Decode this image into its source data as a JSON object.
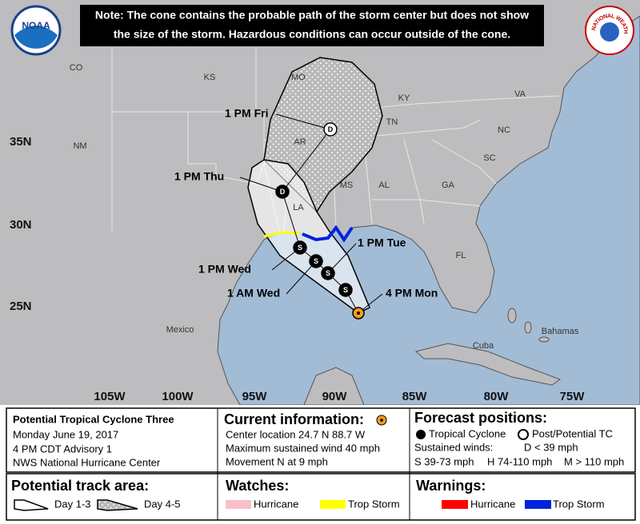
{
  "note": {
    "line1": "Note: The cone contains the probable path of the storm center but does not show",
    "line2": "the size of the storm. Hazardous conditions can occur outside of the cone."
  },
  "logos": {
    "noaa": "NOAA",
    "nws": "NATIONAL WEATHER SERVICE"
  },
  "map": {
    "places": [
      "CO",
      "KS",
      "MO",
      "KY",
      "VA",
      "TN",
      "NC",
      "NM",
      "AR",
      "SC",
      "MS",
      "AL",
      "GA",
      "LA",
      "FL",
      "Mexico",
      "Bahamas",
      "Cuba"
    ],
    "lat_labels": [
      "35N",
      "30N",
      "25N"
    ],
    "lon_labels": [
      "105W",
      "100W",
      "95W",
      "90W",
      "85W",
      "80W",
      "75W"
    ]
  },
  "forecast_points": [
    "S",
    "S",
    "S",
    "S",
    "D",
    "D"
  ],
  "forecast_labels": [
    "4 PM Mon",
    "1 PM Tue",
    "1 AM Wed",
    "1 PM Wed",
    "1 PM Thu",
    "1 PM Fri"
  ],
  "storm_info": {
    "name": "Potential Tropical Cyclone Three",
    "date": "Monday June 19, 2017",
    "advisory": "4 PM CDT Advisory 1",
    "center": "NWS National Hurricane Center"
  },
  "current_information": {
    "title": "Current information:",
    "lines": [
      "Center location 24.7 N 88.7 W",
      "Maximum sustained wind 40 mph",
      "Movement N at 9 mph"
    ]
  },
  "forecast_positions": {
    "title": "Forecast positions:",
    "tropical_cyclone": "Tropical Cyclone",
    "post_potential": "Post/Potential TC",
    "sustained_winds": "Sustained winds:",
    "d": "D < 39 mph",
    "s": "S 39-73 mph",
    "h": "H 74-110 mph",
    "m": "M > 110 mph"
  },
  "track_area": {
    "title": "Potential track area:",
    "day13": "Day 1-3",
    "day45": "Day 4-5"
  },
  "watches": {
    "title": "Watches:",
    "hurricane": "Hurricane",
    "trop_storm": "Trop Storm"
  },
  "warnings": {
    "title": "Warnings:",
    "hurricane": "Hurricane",
    "trop_storm": "Trop Storm"
  }
}
